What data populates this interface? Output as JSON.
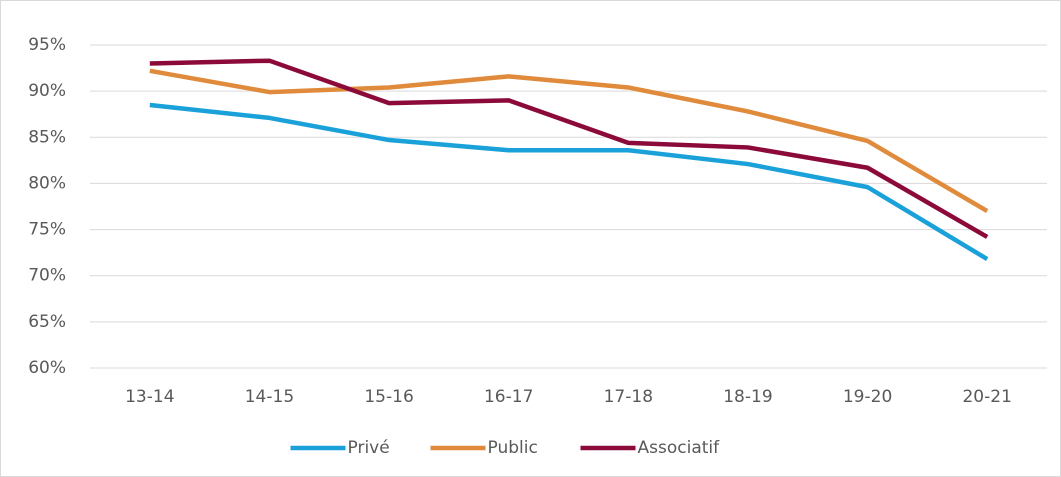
{
  "chart_data": {
    "type": "line",
    "categories": [
      "13-14",
      "14-15",
      "15-16",
      "16-17",
      "17-18",
      "18-19",
      "19-20",
      "20-21"
    ],
    "series": [
      {
        "name": "Privé",
        "color": "#1ba1d9",
        "values": [
          88.5,
          87.1,
          84.7,
          83.6,
          83.6,
          82.1,
          79.6,
          71.8
        ]
      },
      {
        "name": "Public",
        "color": "#e08a3c",
        "values": [
          92.2,
          89.9,
          90.4,
          91.6,
          90.4,
          87.8,
          84.6,
          77.0
        ]
      },
      {
        "name": "Associatif",
        "color": "#8b0a3a",
        "values": [
          93.0,
          93.3,
          88.7,
          89.0,
          84.4,
          83.9,
          81.7,
          74.2
        ]
      }
    ],
    "ylim": [
      60,
      95
    ],
    "yticks": [
      {
        "value": 60,
        "label": "60%"
      },
      {
        "value": 65,
        "label": "65%"
      },
      {
        "value": 70,
        "label": "70%"
      },
      {
        "value": 75,
        "label": "75%"
      },
      {
        "value": 80,
        "label": "80%"
      },
      {
        "value": 85,
        "label": "85%"
      },
      {
        "value": 90,
        "label": "90%"
      },
      {
        "value": 95,
        "label": "95%"
      }
    ],
    "grid": true,
    "legend": "bottom"
  }
}
